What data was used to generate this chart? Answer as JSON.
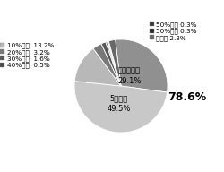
{
  "values": [
    29.1,
    49.5,
    13.2,
    3.2,
    1.6,
    0.5,
    0.3,
    0.3,
    2.3
  ],
  "colors": [
    "#909090",
    "#c8c8c8",
    "#b8b8b8",
    "#787878",
    "#585858",
    "#484848",
    "#383838",
    "#282828",
    "#686868"
  ],
  "startangle": 97,
  "counterclock": false,
  "label_hoboinai": "ほぼいない\n29.1%",
  "label_5miman": "5％未満\n49.5%",
  "annotation_78": "78.6%",
  "legend_left": [
    [
      "10%未満  13.2%",
      "#b8b8b8"
    ],
    [
      "20%未満  3.2%",
      "#787878"
    ],
    [
      "30%未満  1.6%",
      "#585858"
    ],
    [
      "40%未満  0.5%",
      "#484848"
    ]
  ],
  "legend_right": [
    [
      "50%未満 0.3%",
      "#383838"
    ],
    [
      "50%以上 0.3%",
      "#282828"
    ],
    [
      "無回答 2.3%",
      "#686868"
    ]
  ],
  "figsize": [
    2.5,
    1.92
  ],
  "dpi": 100
}
